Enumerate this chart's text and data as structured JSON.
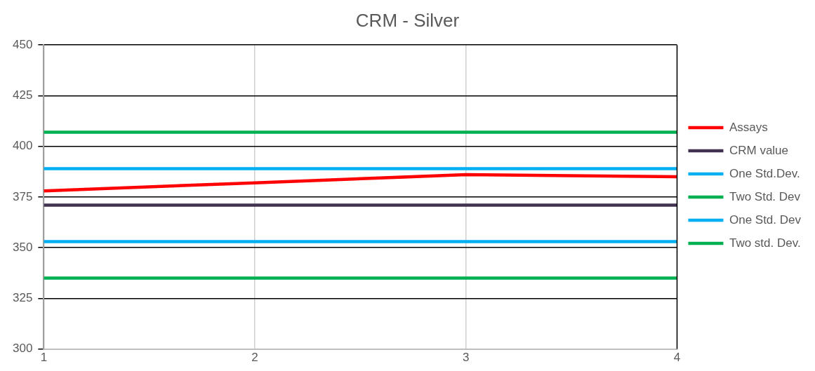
{
  "chart_data": {
    "type": "line",
    "title": "CRM - Silver",
    "x": [
      1,
      2,
      3,
      4
    ],
    "series": [
      {
        "name": "Assays",
        "color": "#ff0000",
        "values": [
          378,
          382,
          386,
          385
        ]
      },
      {
        "name": "CRM value",
        "color": "#403151",
        "values": [
          371,
          371,
          371,
          371
        ]
      },
      {
        "name": "One Std.Dev.",
        "color": "#00b0f0",
        "values": [
          389,
          389,
          389,
          389
        ]
      },
      {
        "name": "Two Std. Dev",
        "color": "#00b050",
        "values": [
          407,
          407,
          407,
          407
        ]
      },
      {
        "name": "One Std. Dev",
        "color": "#00b0f0",
        "values": [
          353,
          353,
          353,
          353
        ]
      },
      {
        "name": "Two std. Dev.",
        "color": "#00b050",
        "values": [
          335,
          335,
          335,
          335
        ]
      }
    ],
    "xlim": [
      1,
      4
    ],
    "xticks": [
      1,
      2,
      3,
      4
    ],
    "ylim": [
      300,
      450
    ],
    "yticks": [
      300,
      325,
      350,
      375,
      400,
      425,
      450
    ],
    "grid": true,
    "legend": "right",
    "marker": "none",
    "line_style": "solid"
  }
}
